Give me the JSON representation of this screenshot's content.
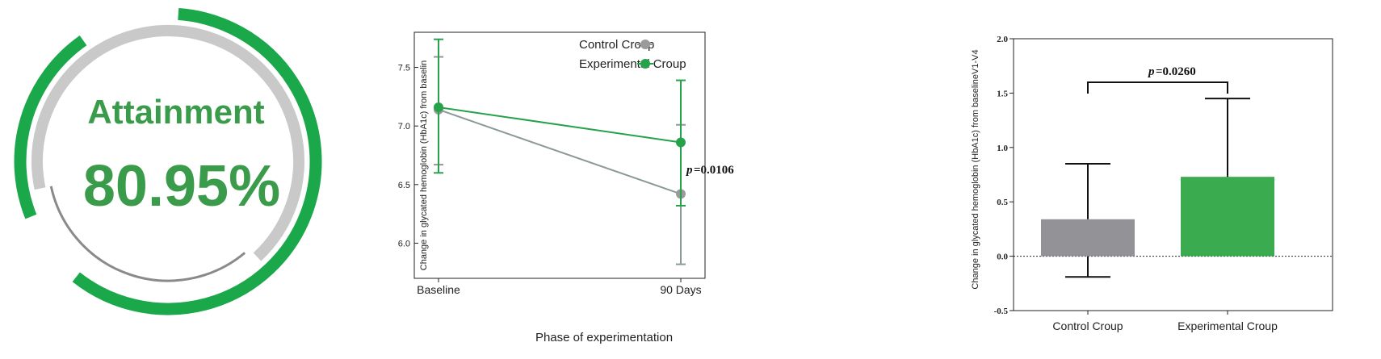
{
  "gauge": {
    "title": "Attainment",
    "value_text": "80.95%",
    "value": 80.95,
    "colors": {
      "ring": "#1aa84a",
      "track": "#c9c9c9",
      "text": "#3a9c4a",
      "inner": "#8a8a8a"
    }
  },
  "chart_data": [
    {
      "type": "line",
      "title": "",
      "xlabel": "Phase of experimentation",
      "ylabel": "Change in glycated hemoglobin (HbA1c) from baselin",
      "categories": [
        "Baseline",
        "90 Days"
      ],
      "ylim": [
        5.7,
        7.8
      ],
      "yticks": [
        6.0,
        6.5,
        7.0,
        7.5
      ],
      "ytick_labels": [
        "6.0",
        "6.5",
        "7.0",
        "7.5"
      ],
      "legend_position": "top-right",
      "annotation": {
        "p_label": "p",
        "p_value": "=0.0106"
      },
      "series": [
        {
          "name": "Control Croup",
          "color": "#8a9a98",
          "marker_color": "#9a9a9a",
          "values": [
            7.14,
            6.42
          ],
          "err_low": [
            6.67,
            5.82
          ],
          "err_high": [
            7.59,
            7.01
          ]
        },
        {
          "name": "Experimental Croup",
          "color": "#26a24a",
          "marker_color": "#26a24a",
          "values": [
            7.16,
            6.86
          ],
          "err_low": [
            6.6,
            6.32
          ],
          "err_high": [
            7.74,
            7.39
          ]
        }
      ]
    },
    {
      "type": "bar",
      "title": "",
      "xlabel": "",
      "ylabel": "Change in glycated hemoglobin (HbA1c) from baselineV1-V4",
      "categories": [
        "Control Croup",
        "Experimental Croup"
      ],
      "values": [
        0.34,
        0.73
      ],
      "err_low": [
        -0.19,
        0.0
      ],
      "err_high": [
        0.85,
        1.45
      ],
      "colors": [
        "#939397",
        "#3aab4f"
      ],
      "ylim": [
        -0.5,
        2.0
      ],
      "yticks": [
        -0.5,
        0.0,
        0.5,
        1.0,
        1.5,
        2.0
      ],
      "ytick_labels": [
        "-0.5",
        "0.0",
        "0.5",
        "1.0",
        "1.5",
        "2.0"
      ],
      "annotation": {
        "p_label": "p",
        "p_value": "=0.0260"
      }
    }
  ]
}
